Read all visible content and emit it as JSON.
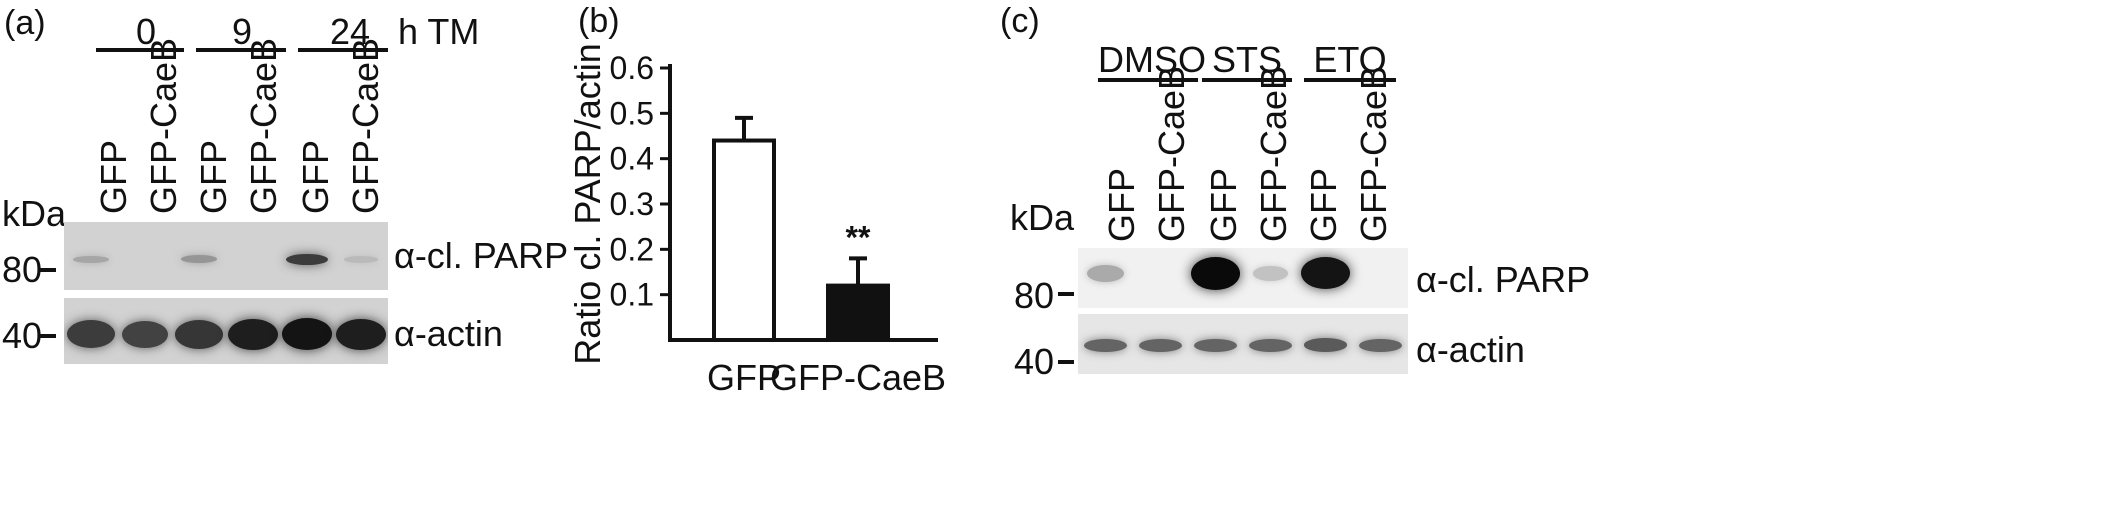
{
  "panel_a": {
    "letter": "(a)",
    "time_unit": "h TM",
    "groups": [
      "0",
      "9",
      "24"
    ],
    "lanes": [
      "GFP",
      "GFP-CaeB",
      "GFP",
      "GFP-CaeB",
      "GFP",
      "GFP-CaeB"
    ],
    "kda_label": "kDa",
    "markers": [
      "80",
      "40"
    ],
    "blots": [
      "α-cl. PARP",
      "α-actin"
    ],
    "parp_intensity": [
      0.22,
      0.0,
      0.3,
      0.0,
      0.75,
      0.12
    ],
    "actin_intensity": [
      0.75,
      0.72,
      0.78,
      0.9,
      0.95,
      0.9
    ]
  },
  "panel_b": {
    "letter": "(b)",
    "significance": "**"
  },
  "chart_data": {
    "type": "bar",
    "categories": [
      "GFP",
      "GFP-CaeB"
    ],
    "values": [
      0.44,
      0.12
    ],
    "errors": [
      0.05,
      0.06
    ],
    "bar_colors": [
      "#ffffff",
      "#111111"
    ],
    "title": "",
    "xlabel": "",
    "ylabel": "Ratio cl. PARP/actin",
    "ylim": [
      0.0,
      0.6
    ],
    "yticks": [
      "0.1",
      "0.2",
      "0.3",
      "0.4",
      "0.5",
      "0.6"
    ],
    "grid": false
  },
  "panel_c": {
    "letter": "(c)",
    "groups": [
      "DMSO",
      "STS",
      "ETO"
    ],
    "lanes": [
      "GFP",
      "GFP-CaeB",
      "GFP",
      "GFP-CaeB",
      "GFP",
      "GFP-CaeB"
    ],
    "kda_label": "kDa",
    "markers": [
      "80",
      "40"
    ],
    "blots": [
      "α-cl. PARP",
      "α-actin"
    ],
    "parp_intensity": [
      0.2,
      0.0,
      1.0,
      0.08,
      0.95,
      0.0
    ],
    "actin_intensity": [
      0.55,
      0.55,
      0.55,
      0.55,
      0.6,
      0.55
    ]
  }
}
